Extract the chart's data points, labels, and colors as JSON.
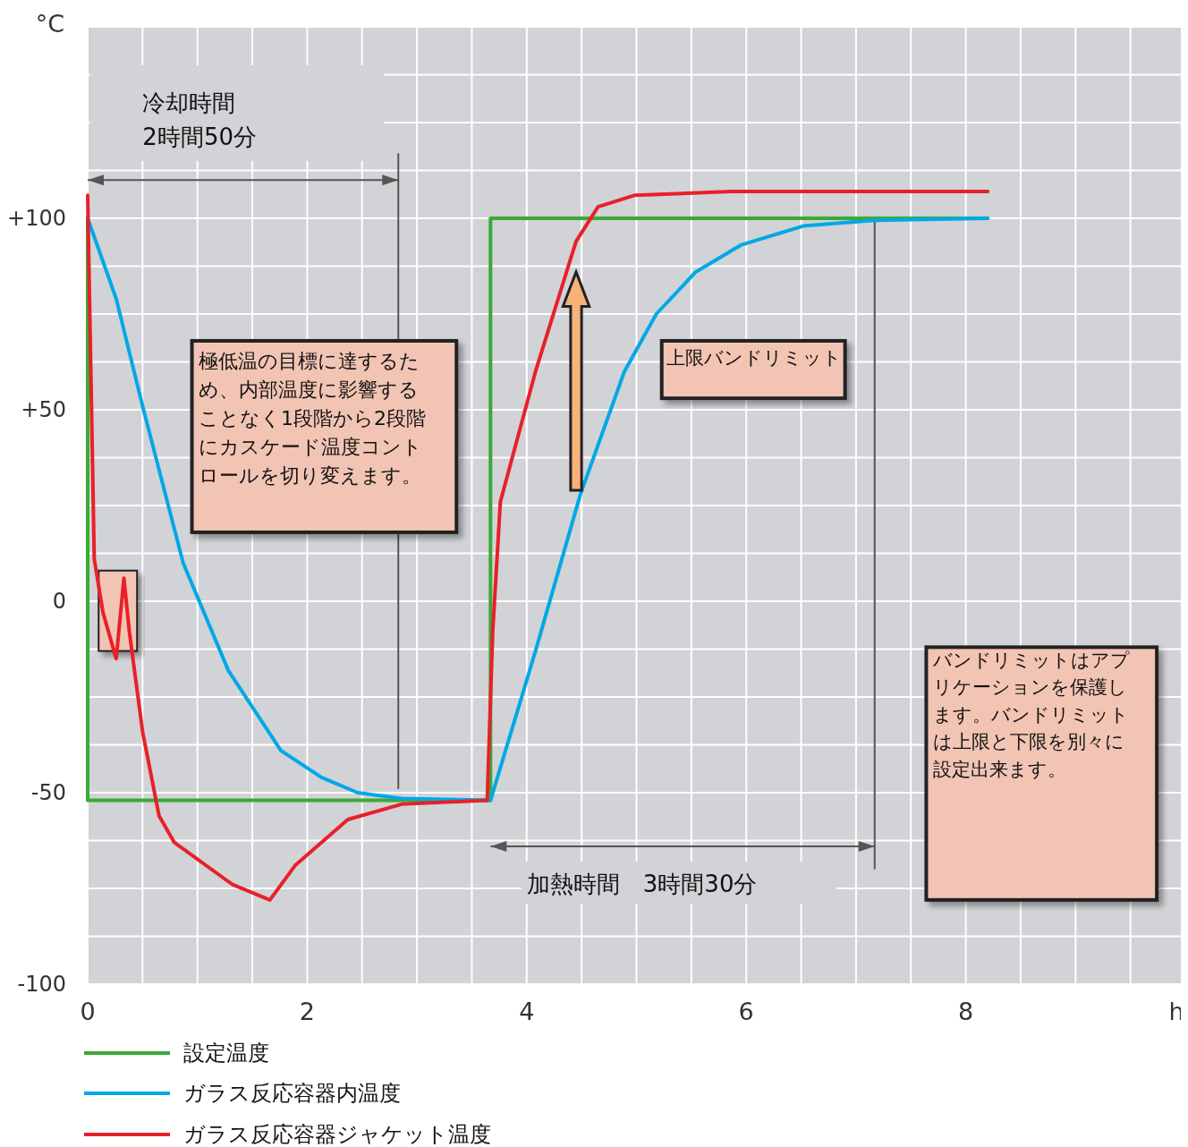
{
  "chart_data": {
    "type": "line",
    "ylabel": "°C",
    "xlabel": "h",
    "xlim": [
      0,
      10
    ],
    "ylim": [
      -100,
      150
    ],
    "xticks": [
      0,
      {
        "value": 0.5,
        "label": null
      },
      2,
      {
        "value": 1,
        "label": null
      },
      {
        "value": 1.5,
        "label": null
      },
      {
        "value": 2.5,
        "label": null
      },
      {
        "value": 3,
        "label": null
      },
      {
        "value": 3.5,
        "label": null
      },
      4,
      {
        "value": 4.5,
        "label": null
      },
      {
        "value": 5,
        "label": null
      },
      {
        "value": 5.5,
        "label": null
      },
      6,
      {
        "value": 6.5,
        "label": null
      },
      {
        "value": 7,
        "label": null
      },
      {
        "value": 7.5,
        "label": null
      },
      8,
      {
        "value": 8.5,
        "label": null
      },
      {
        "value": 9,
        "label": null
      },
      {
        "value": 9.5,
        "label": null
      },
      {
        "value": 10,
        "label": null
      }
    ],
    "yticks": [
      {
        "value": -100,
        "label": "-100"
      },
      {
        "value": -87.5,
        "label": null
      },
      {
        "value": -75,
        "label": null
      },
      {
        "value": -62.5,
        "label": null
      },
      {
        "value": -50,
        "label": "-50"
      },
      {
        "value": -37.5,
        "label": null
      },
      {
        "value": -25,
        "label": null
      },
      {
        "value": -12.5,
        "label": null
      },
      {
        "value": 0,
        "label": "0"
      },
      {
        "value": 12.5,
        "label": null
      },
      {
        "value": 25,
        "label": null
      },
      {
        "value": 37.5,
        "label": null
      },
      {
        "value": 50,
        "label": "+50"
      },
      {
        "value": 62.5,
        "label": null
      },
      {
        "value": 75,
        "label": null
      },
      {
        "value": 87.5,
        "label": null
      },
      {
        "value": 100,
        "label": "+100"
      },
      {
        "value": 112.5,
        "label": null
      },
      {
        "value": 125,
        "label": null
      },
      {
        "value": 137.5,
        "label": null
      },
      {
        "value": 150,
        "label": null
      }
    ],
    "grid": true,
    "legend": "bottom",
    "line_style": "solid",
    "marker": "none",
    "series": [
      {
        "name": "設定温度",
        "color": "#3aaa35",
        "x": [
          0,
          0,
          3.67,
          3.67,
          8.2
        ],
        "values": [
          100,
          -52,
          -52,
          100,
          100
        ]
      },
      {
        "name": "ガラス反応容器内温度",
        "color": "#00a8e8",
        "x": [
          0,
          0.26,
          0.5,
          0.87,
          1.28,
          1.76,
          2.13,
          2.46,
          2.86,
          3.67,
          4.08,
          4.49,
          4.89,
          5.18,
          5.54,
          5.95,
          6.52,
          7.17,
          8.2
        ],
        "values": [
          100,
          79,
          51,
          10,
          -18,
          -39,
          -46,
          -50,
          -51.5,
          -52,
          -13,
          28,
          60,
          75,
          86,
          93,
          98,
          99.5,
          100
        ]
      },
      {
        "name": "ガラス反応容器ジャケット温度",
        "color": "#e8202a",
        "x": [
          0,
          0.06,
          0.14,
          0.26,
          0.33,
          0.38,
          0.5,
          0.65,
          0.79,
          1.32,
          1.66,
          1.89,
          2.37,
          2.86,
          3.64,
          3.69,
          3.76,
          4.08,
          4.45,
          4.65,
          4.98,
          5.87,
          8.2
        ],
        "values": [
          106,
          11,
          -3,
          -15,
          6,
          -8,
          -34,
          -56,
          -63,
          -74,
          -78,
          -69,
          -57,
          -53,
          -52,
          -8,
          26,
          60,
          94,
          103,
          106,
          107,
          107
        ]
      }
    ],
    "ref_lines": [
      {
        "axis": "x",
        "value": 2.83,
        "color": "#555555"
      },
      {
        "axis": "x",
        "value": 7.17,
        "color": "#555555"
      }
    ],
    "annotations": [
      "冷却時間\n2時間50分",
      "極低温の目標に達するため、内部温度に影響することなく1段階から2段階にカスケード温度コントロールを切り変えます。",
      "上限バンドリミット",
      "バンドリミットはアプリケーションを保護します。バンドリミットは上限と下限を別々に設定出来ます。",
      "加熱時間　3時間30分"
    ]
  }
}
